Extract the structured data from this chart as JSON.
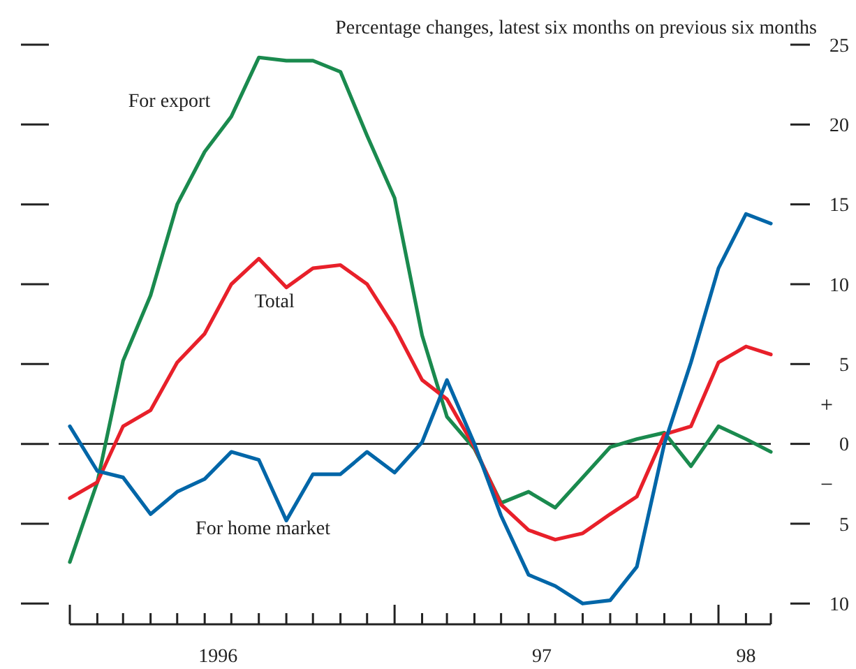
{
  "chart_data": {
    "type": "line",
    "title": "Percentage changes, latest six months on previous six months",
    "x": [
      "1996-01",
      "1996-02",
      "1996-03",
      "1996-04",
      "1996-05",
      "1996-06",
      "1996-07",
      "1996-08",
      "1996-09",
      "1996-10",
      "1996-11",
      "1996-12",
      "1997-01",
      "1997-02",
      "1997-03",
      "1997-04",
      "1997-05",
      "1997-06",
      "1997-07",
      "1997-08",
      "1997-09",
      "1997-10",
      "1997-11",
      "1997-12",
      "1998-01",
      "1998-02",
      "1998-03"
    ],
    "series": [
      {
        "name": "For export",
        "color": "#1a8a4e",
        "values": [
          -7.4,
          -2.4,
          5.2,
          9.3,
          15.0,
          18.3,
          20.5,
          24.2,
          24.0,
          24.0,
          23.3,
          19.3,
          15.4,
          6.8,
          1.7,
          -0.3,
          -3.7,
          -3.0,
          -4.0,
          -2.1,
          -0.2,
          0.3,
          0.7,
          -1.4,
          1.1,
          0.3,
          -0.5
        ]
      },
      {
        "name": "Total",
        "color": "#e8202a",
        "values": [
          -3.4,
          -2.4,
          1.1,
          2.1,
          5.1,
          6.9,
          10.0,
          11.6,
          9.8,
          11.0,
          11.2,
          10.0,
          7.3,
          4.0,
          2.8,
          -0.2,
          -3.8,
          -5.4,
          -6.0,
          -5.6,
          -4.4,
          -3.3,
          0.6,
          1.1,
          5.1,
          6.1,
          5.6
        ]
      },
      {
        "name": "For home market",
        "color": "#0066a8",
        "values": [
          1.1,
          -1.7,
          -2.1,
          -4.4,
          -3.0,
          -2.2,
          -0.5,
          -1.0,
          -4.8,
          -1.9,
          -1.9,
          -0.5,
          -1.8,
          0.1,
          4.0,
          0.0,
          -4.5,
          -8.2,
          -8.9,
          -10.0,
          -9.8,
          -7.7,
          0.0,
          5.1,
          11.0,
          14.4,
          13.8
        ]
      }
    ],
    "xlim": [
      "1996-01",
      "1998-03"
    ],
    "xticks": [
      {
        "value": "1996-01",
        "label": null
      },
      {
        "value": "1996-02",
        "label": null
      },
      {
        "value": "1996-03",
        "label": null
      },
      {
        "value": "1996-04",
        "label": null
      },
      {
        "value": "1996-05",
        "label": null
      },
      {
        "value": "1996-06",
        "label": null
      },
      {
        "value": "1996-07",
        "label": null
      },
      {
        "value": "1996-08",
        "label": null
      },
      {
        "value": "1996-09",
        "label": null
      },
      {
        "value": "1996-10",
        "label": null
      },
      {
        "value": "1996-11",
        "label": null
      },
      {
        "value": "1996-12",
        "label": null
      },
      {
        "value": "1997-01",
        "label": null
      },
      {
        "value": "1997-02",
        "label": null
      },
      {
        "value": "1997-03",
        "label": null
      },
      {
        "value": "1997-04",
        "label": null
      },
      {
        "value": "1997-05",
        "label": null
      },
      {
        "value": "1997-06",
        "label": null
      },
      {
        "value": "1997-07",
        "label": null
      },
      {
        "value": "1997-08",
        "label": null
      },
      {
        "value": "1997-09",
        "label": null
      },
      {
        "value": "1997-10",
        "label": null
      },
      {
        "value": "1997-11",
        "label": null
      },
      {
        "value": "1997-12",
        "label": null
      },
      {
        "value": "1998-01",
        "label": null
      },
      {
        "value": "1998-02",
        "label": null
      },
      {
        "value": "1998-03",
        "label": null
      },
      {
        "value": "1996-06-16",
        "label": "1996"
      },
      {
        "value": "1997-06-16",
        "label": "97"
      },
      {
        "value": "1998-02",
        "label": "98"
      }
    ],
    "ylim": [
      -11.3,
      25
    ],
    "yticks": [
      25,
      20,
      15,
      10,
      5,
      0,
      {
        "value": -5,
        "label": "5"
      },
      {
        "value": -10,
        "label": "10"
      }
    ],
    "ref_lines": [
      {
        "axis": "y",
        "value": 0,
        "color": "#000000"
      }
    ],
    "annotations": [
      "+",
      "−"
    ],
    "legend": false,
    "grid": false,
    "marker": "none",
    "line_style": "solid"
  }
}
